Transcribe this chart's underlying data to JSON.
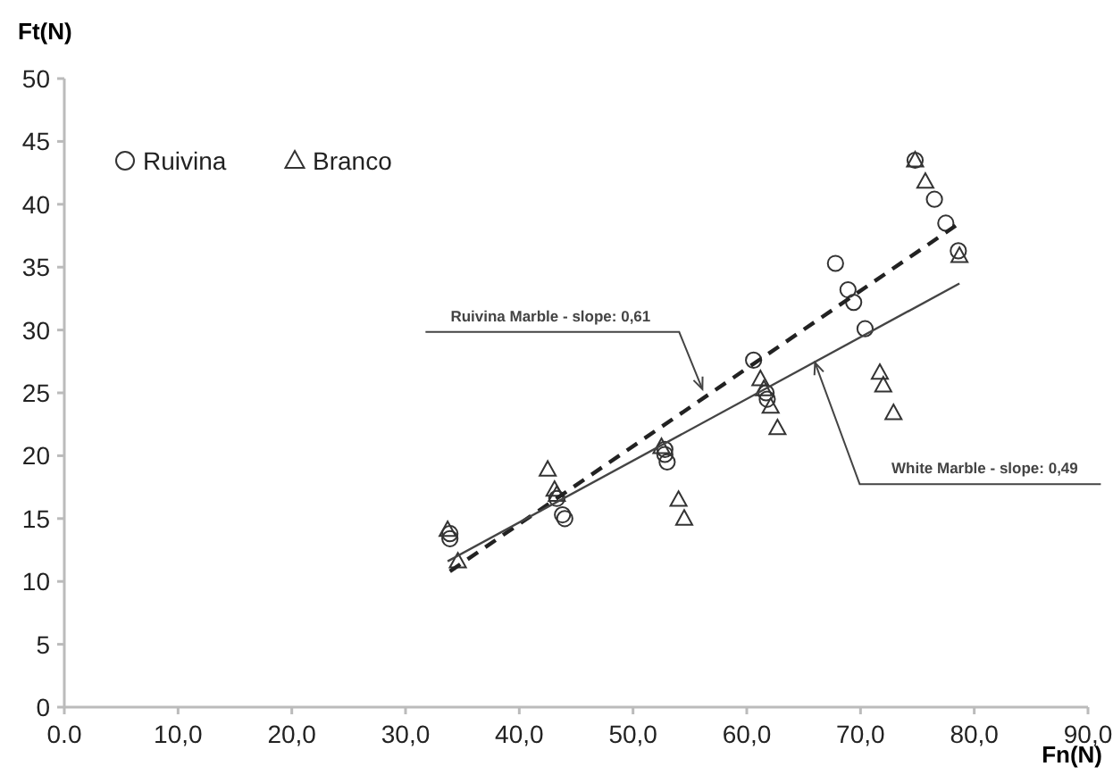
{
  "chart_data": {
    "type": "scatter",
    "xlabel": "Fn(N)",
    "ylabel": "Ft(N)",
    "xlim": [
      0,
      90
    ],
    "ylim": [
      0,
      50
    ],
    "xticks": [
      {
        "value": 0,
        "label": "0.0"
      },
      {
        "value": 10,
        "label": "10,0"
      },
      {
        "value": 20,
        "label": "20,0"
      },
      {
        "value": 30,
        "label": "30,0"
      },
      {
        "value": 40,
        "label": "40,0"
      },
      {
        "value": 50,
        "label": "50,0"
      },
      {
        "value": 60,
        "label": "60,0"
      },
      {
        "value": 70,
        "label": "70,0"
      },
      {
        "value": 80,
        "label": "80,0"
      },
      {
        "value": 90,
        "label": "90,0"
      }
    ],
    "yticks": [
      0,
      5,
      10,
      15,
      20,
      25,
      30,
      35,
      40,
      45,
      50
    ],
    "grid": false,
    "legend": "top left",
    "series": [
      {
        "name": "Ruivina",
        "marker": "circle",
        "color": "#333333",
        "x": [
          33.9,
          33.9,
          43.3,
          43.8,
          44.0,
          52.8,
          52.8,
          53.0,
          60.6,
          61.7,
          61.8,
          67.8,
          68.9,
          69.4,
          70.4,
          74.8,
          76.5,
          77.5,
          78.6
        ],
        "values": [
          13.4,
          13.8,
          16.6,
          15.3,
          15.0,
          20.5,
          20.1,
          19.5,
          27.6,
          25.0,
          24.5,
          35.3,
          33.2,
          32.2,
          30.1,
          43.5,
          40.4,
          38.5,
          36.3
        ]
      },
      {
        "name": "Branco",
        "marker": "triangle",
        "color": "#333333",
        "x": [
          33.7,
          34.6,
          42.5,
          43.1,
          43.3,
          52.5,
          54.0,
          54.5,
          61.2,
          61.5,
          62.1,
          62.7,
          71.7,
          72.0,
          72.9,
          74.8,
          75.7,
          78.7
        ],
        "values": [
          14.1,
          11.6,
          18.9,
          17.3,
          16.9,
          20.7,
          16.5,
          15.0,
          26.1,
          25.3,
          23.9,
          22.2,
          26.6,
          25.6,
          23.4,
          43.5,
          41.8,
          35.9
        ]
      },
      {
        "type": "line",
        "line_style": "dashed",
        "marker": "none",
        "color": "#222222",
        "x": [
          33.9,
          78.7
        ],
        "values": [
          10.8,
          38.5
        ]
      },
      {
        "type": "line",
        "line_style": "solid",
        "marker": "none",
        "color": "#444444",
        "x": [
          33.7,
          78.7
        ],
        "values": [
          11.6,
          33.7
        ]
      }
    ],
    "annotations": [
      {
        "text": "Ruivina Marble - slope: 0,61",
        "x": 56.1,
        "y": 25.3
      },
      {
        "text": "White Marble - slope: 0,49",
        "x": 66,
        "y": 27.4
      }
    ]
  }
}
